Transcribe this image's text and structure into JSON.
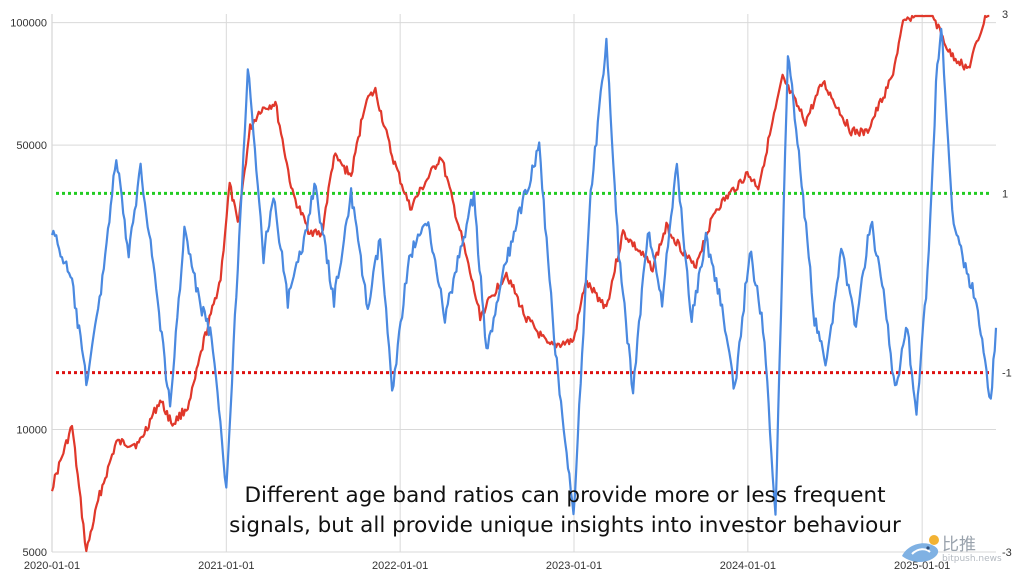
{
  "chart_data": {
    "type": "line",
    "title": "",
    "xlabel": "",
    "x_ticks": [
      "2020-01-01",
      "2021-01-01",
      "2022-01-01",
      "2023-01-01",
      "2024-01-01",
      "2025-01-01"
    ],
    "y_left": {
      "scale": "log",
      "ticks": [
        "100000",
        "50000",
        "10000",
        "5000"
      ],
      "range": [
        5000,
        105000
      ]
    },
    "y_right": {
      "scale": "linear",
      "ticks": [
        "3",
        "1",
        "-1",
        "-3"
      ],
      "range": [
        -3,
        3
      ]
    },
    "thresholds": [
      {
        "value": 1,
        "axis": "right",
        "color": "#22cc22",
        "style": "dotted"
      },
      {
        "value": -1,
        "axis": "right",
        "color": "#dd1111",
        "style": "dotted"
      }
    ],
    "series": [
      {
        "axis": "left",
        "color": "#e0382b",
        "points": [
          [
            "2020-01-01",
            7200
          ],
          [
            "2020-02-12",
            10200
          ],
          [
            "2020-03-13",
            5000
          ],
          [
            "2020-04-10",
            6900
          ],
          [
            "2020-05-15",
            9300
          ],
          [
            "2020-07-01",
            9200
          ],
          [
            "2020-08-15",
            11800
          ],
          [
            "2020-09-10",
            10300
          ],
          [
            "2020-10-15",
            11500
          ],
          [
            "2020-11-15",
            16500
          ],
          [
            "2020-12-20",
            23500
          ],
          [
            "2021-01-08",
            40000
          ],
          [
            "2021-01-25",
            32000
          ],
          [
            "2021-02-20",
            55000
          ],
          [
            "2021-03-13",
            61000
          ],
          [
            "2021-04-14",
            63500
          ],
          [
            "2021-05-20",
            38000
          ],
          [
            "2021-06-22",
            31000
          ],
          [
            "2021-07-20",
            30000
          ],
          [
            "2021-08-15",
            47000
          ],
          [
            "2021-09-20",
            42000
          ],
          [
            "2021-10-20",
            64000
          ],
          [
            "2021-11-10",
            68000
          ],
          [
            "2021-12-15",
            47000
          ],
          [
            "2022-01-22",
            35000
          ],
          [
            "2022-03-28",
            47000
          ],
          [
            "2022-05-12",
            29000
          ],
          [
            "2022-06-18",
            19000
          ],
          [
            "2022-08-12",
            24300
          ],
          [
            "2022-09-20",
            19000
          ],
          [
            "2022-11-09",
            16000
          ],
          [
            "2022-12-31",
            16500
          ],
          [
            "2023-01-25",
            23000
          ],
          [
            "2023-03-10",
            20000
          ],
          [
            "2023-04-14",
            30500
          ],
          [
            "2023-06-15",
            25000
          ],
          [
            "2023-07-14",
            31500
          ],
          [
            "2023-09-11",
            25000
          ],
          [
            "2023-10-24",
            34500
          ],
          [
            "2023-12-31",
            42500
          ],
          [
            "2024-01-23",
            39500
          ],
          [
            "2024-02-28",
            61000
          ],
          [
            "2024-03-14",
            73000
          ],
          [
            "2024-05-01",
            57000
          ],
          [
            "2024-06-07",
            71500
          ],
          [
            "2024-08-05",
            54000
          ],
          [
            "2024-09-06",
            53500
          ],
          [
            "2024-10-29",
            73000
          ],
          [
            "2024-11-22",
            99000
          ],
          [
            "2024-12-17",
            106000
          ],
          [
            "2025-01-20",
            106000
          ],
          [
            "2025-02-28",
            84000
          ],
          [
            "2025-04-08",
            77000
          ],
          [
            "2025-05-22",
            110000
          ]
        ]
      },
      {
        "axis": "right",
        "color": "#4a89e0",
        "points": [
          [
            "2020-01-01",
            0.6
          ],
          [
            "2020-02-12",
            0.0
          ],
          [
            "2020-03-13",
            -1.1
          ],
          [
            "2020-04-10",
            -0.2
          ],
          [
            "2020-05-15",
            1.4
          ],
          [
            "2020-06-10",
            0.3
          ],
          [
            "2020-07-05",
            1.3
          ],
          [
            "2020-08-01",
            0.2
          ],
          [
            "2020-09-05",
            -1.4
          ],
          [
            "2020-10-05",
            0.6
          ],
          [
            "2020-11-05",
            -0.2
          ],
          [
            "2020-12-01",
            -0.6
          ],
          [
            "2021-01-01",
            -2.3
          ],
          [
            "2021-02-15",
            2.4
          ],
          [
            "2021-03-20",
            0.3
          ],
          [
            "2021-04-10",
            1.0
          ],
          [
            "2021-05-10",
            -0.2
          ],
          [
            "2021-06-10",
            0.4
          ],
          [
            "2021-07-05",
            1.1
          ],
          [
            "2021-08-15",
            -0.2
          ],
          [
            "2021-09-20",
            1.0
          ],
          [
            "2021-10-25",
            -0.3
          ],
          [
            "2021-11-20",
            0.5
          ],
          [
            "2021-12-15",
            -1.2
          ],
          [
            "2022-01-20",
            0.3
          ],
          [
            "2022-03-01",
            0.7
          ],
          [
            "2022-04-05",
            -0.4
          ],
          [
            "2022-05-05",
            0.3
          ],
          [
            "2022-06-05",
            1.0
          ],
          [
            "2022-07-01",
            -0.8
          ],
          [
            "2022-08-10",
            0.2
          ],
          [
            "2022-09-15",
            0.9
          ],
          [
            "2022-10-20",
            1.5
          ],
          [
            "2022-11-20",
            -0.6
          ],
          [
            "2022-12-31",
            -2.6
          ],
          [
            "2023-02-05",
            1.0
          ],
          [
            "2023-03-10",
            2.7
          ],
          [
            "2023-04-05",
            0.3
          ],
          [
            "2023-05-05",
            -1.2
          ],
          [
            "2023-06-05",
            0.6
          ],
          [
            "2023-07-05",
            -0.2
          ],
          [
            "2023-08-05",
            1.3
          ],
          [
            "2023-09-05",
            -0.4
          ],
          [
            "2023-10-05",
            0.5
          ],
          [
            "2023-11-05",
            -0.2
          ],
          [
            "2023-12-05",
            -1.2
          ],
          [
            "2024-01-05",
            0.4
          ],
          [
            "2024-02-05",
            -0.6
          ],
          [
            "2024-02-28",
            -2.6
          ],
          [
            "2024-03-25",
            2.6
          ],
          [
            "2024-04-20",
            1.3
          ],
          [
            "2024-05-20",
            -0.4
          ],
          [
            "2024-06-15",
            -0.9
          ],
          [
            "2024-07-15",
            0.4
          ],
          [
            "2024-08-15",
            -0.5
          ],
          [
            "2024-09-15",
            0.7
          ],
          [
            "2024-10-15",
            -0.2
          ],
          [
            "2024-11-05",
            -1.2
          ],
          [
            "2024-12-01",
            -0.5
          ],
          [
            "2024-12-20",
            -1.5
          ],
          [
            "2025-01-15",
            0.3
          ],
          [
            "2025-01-30",
            2.2
          ],
          [
            "2025-02-10",
            2.9
          ],
          [
            "2025-03-05",
            0.8
          ],
          [
            "2025-04-05",
            0.1
          ],
          [
            "2025-04-25",
            -0.2
          ],
          [
            "2025-05-10",
            -0.8
          ],
          [
            "2025-05-25",
            -1.3
          ],
          [
            "2025-06-05",
            -0.5
          ]
        ]
      }
    ]
  },
  "caption": {
    "line1": "Different age band ratios can provide more or less frequent",
    "line2": "signals, but all provide unique insights into investor behaviour"
  },
  "watermark": {
    "text": "比推",
    "url": "bitpush.news"
  }
}
